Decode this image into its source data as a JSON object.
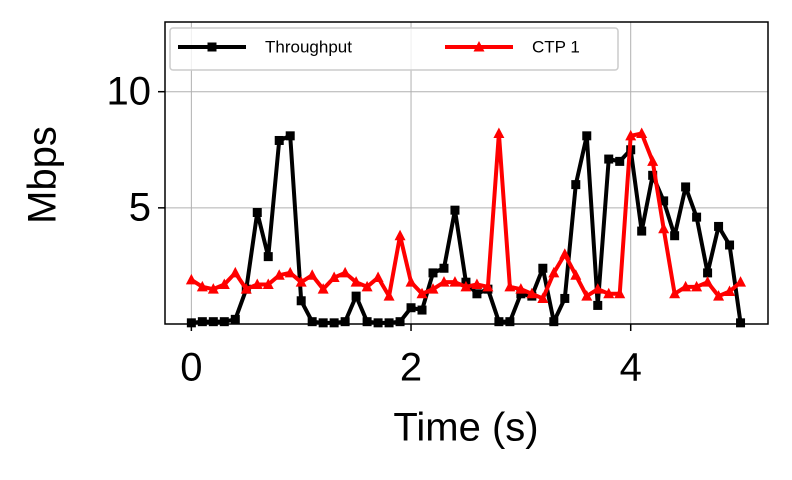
{
  "chart_data": {
    "type": "line",
    "xlabel": "Time (s)",
    "ylabel": "Mbps",
    "x": [
      0,
      0.1,
      0.2,
      0.3,
      0.4,
      0.5,
      0.6,
      0.7,
      0.8,
      0.9,
      1.0,
      1.1,
      1.2,
      1.3,
      1.4,
      1.5,
      1.6,
      1.7,
      1.8,
      1.9,
      2.0,
      2.1,
      2.2,
      2.3,
      2.4,
      2.5,
      2.6,
      2.7,
      2.8,
      2.9,
      3.0,
      3.1,
      3.2,
      3.3,
      3.4,
      3.5,
      3.6,
      3.7,
      3.8,
      3.9,
      4.0,
      4.1,
      4.2,
      4.3,
      4.4,
      4.5,
      4.6,
      4.7,
      4.8,
      4.9,
      5.0
    ],
    "series": [
      {
        "name": "Throughput",
        "color": "#000000",
        "marker": "square",
        "values": [
          0.05,
          0.1,
          0.1,
          0.1,
          0.2,
          1.5,
          4.8,
          2.9,
          7.9,
          8.1,
          1.0,
          0.1,
          0.05,
          0.05,
          0.1,
          1.2,
          0.1,
          0.05,
          0.05,
          0.1,
          0.7,
          0.6,
          2.2,
          2.4,
          4.9,
          1.8,
          1.3,
          1.5,
          0.1,
          0.1,
          1.3,
          1.2,
          2.4,
          0.1,
          1.1,
          6.0,
          8.1,
          0.8,
          7.1,
          7.0,
          7.5,
          4.0,
          6.4,
          5.3,
          3.8,
          5.9,
          4.6,
          2.2,
          4.2,
          3.4,
          0.05
        ]
      },
      {
        "name": "CTP 1",
        "color": "#ff0000",
        "marker": "triangle",
        "values": [
          1.9,
          1.6,
          1.5,
          1.7,
          2.2,
          1.5,
          1.7,
          1.7,
          2.1,
          2.2,
          1.8,
          2.1,
          1.5,
          2.0,
          2.2,
          1.8,
          1.6,
          2.0,
          1.2,
          3.8,
          1.8,
          1.3,
          1.5,
          1.8,
          1.8,
          1.6,
          1.7,
          1.6,
          8.2,
          1.6,
          1.5,
          1.3,
          1.1,
          2.2,
          3.0,
          2.1,
          1.2,
          1.5,
          1.3,
          1.3,
          8.1,
          8.2,
          7.0,
          4.1,
          1.3,
          1.6,
          1.6,
          1.8,
          1.2,
          1.4,
          1.8
        ]
      }
    ],
    "xlim": [
      -0.24,
      5.25
    ],
    "xticks": [
      0,
      2,
      4
    ],
    "ylim": [
      0,
      13
    ],
    "yticks": [
      5,
      10
    ],
    "grid": true,
    "legend": "upper left"
  }
}
